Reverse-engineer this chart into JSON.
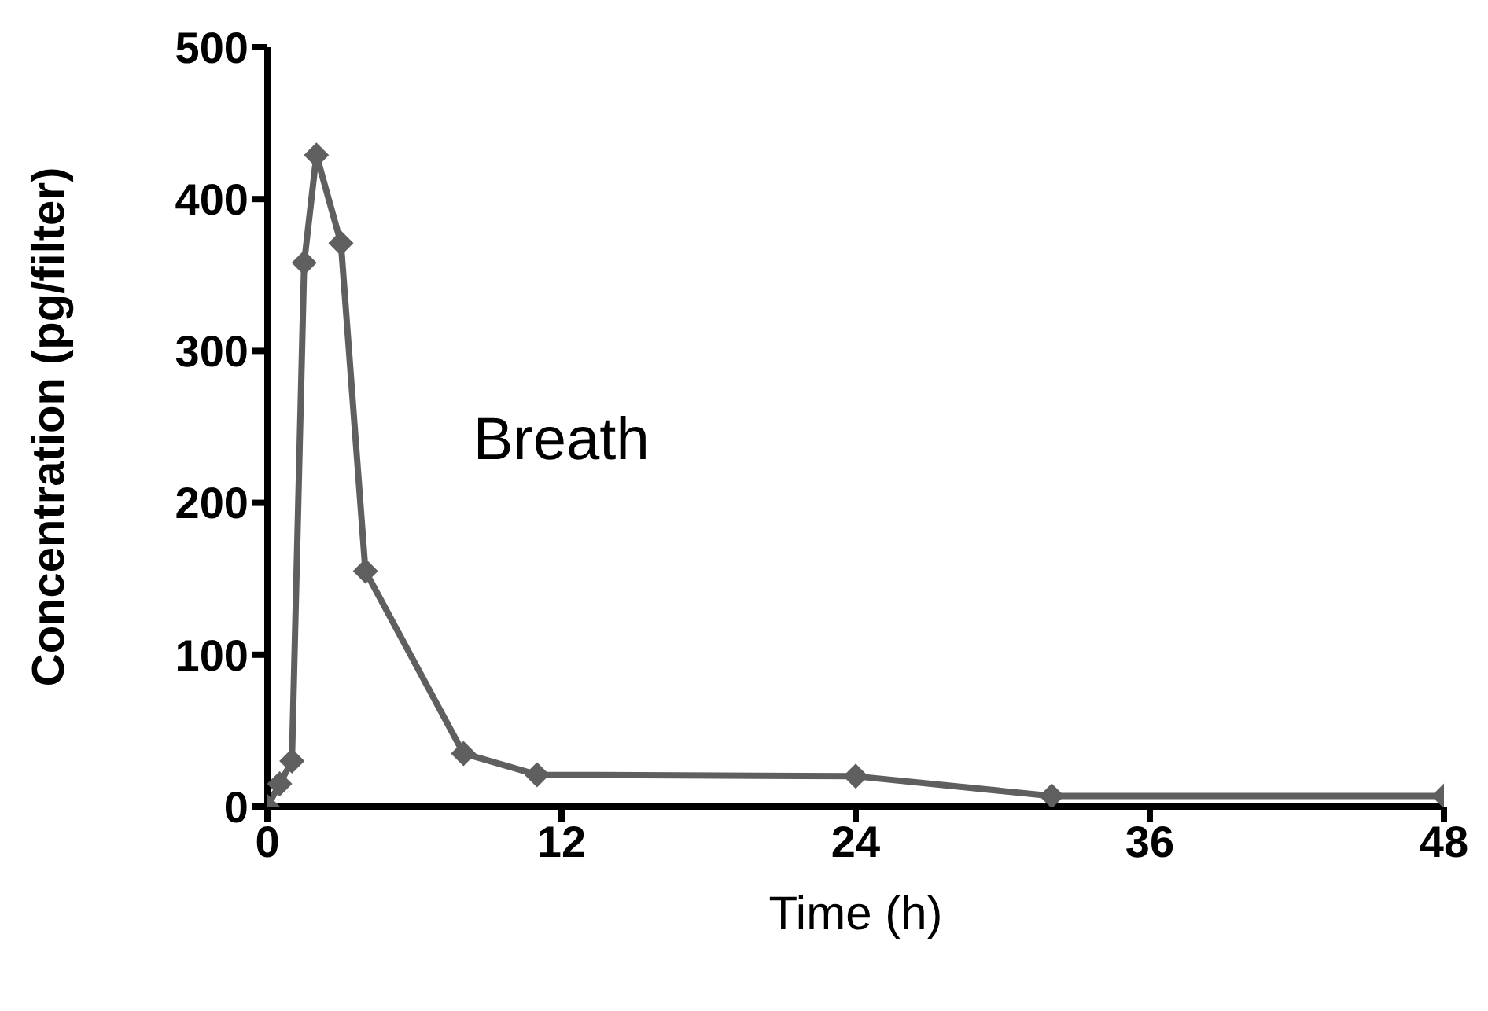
{
  "chart_data": {
    "type": "line",
    "xlabel": "Time (h)",
    "ylabel": "Concentration (pg/filter)",
    "annotations": [
      "Breath"
    ],
    "x": [
      0,
      0.5,
      1,
      1.5,
      2,
      3,
      4,
      8,
      11,
      24,
      32,
      48
    ],
    "series": [
      {
        "color": "#5f5f5f",
        "values": [
          0,
          15,
          30,
          358,
          429,
          371,
          155,
          35,
          21,
          20,
          7,
          7
        ]
      }
    ],
    "xlim": [
      0,
      48
    ],
    "xticks": [
      0,
      12,
      24,
      36,
      48
    ],
    "ylim": [
      0,
      500
    ],
    "yticks": [
      0,
      100,
      200,
      300,
      400,
      500
    ],
    "grid": false,
    "legend": false,
    "marker": "diamond",
    "line_style": "solid"
  }
}
